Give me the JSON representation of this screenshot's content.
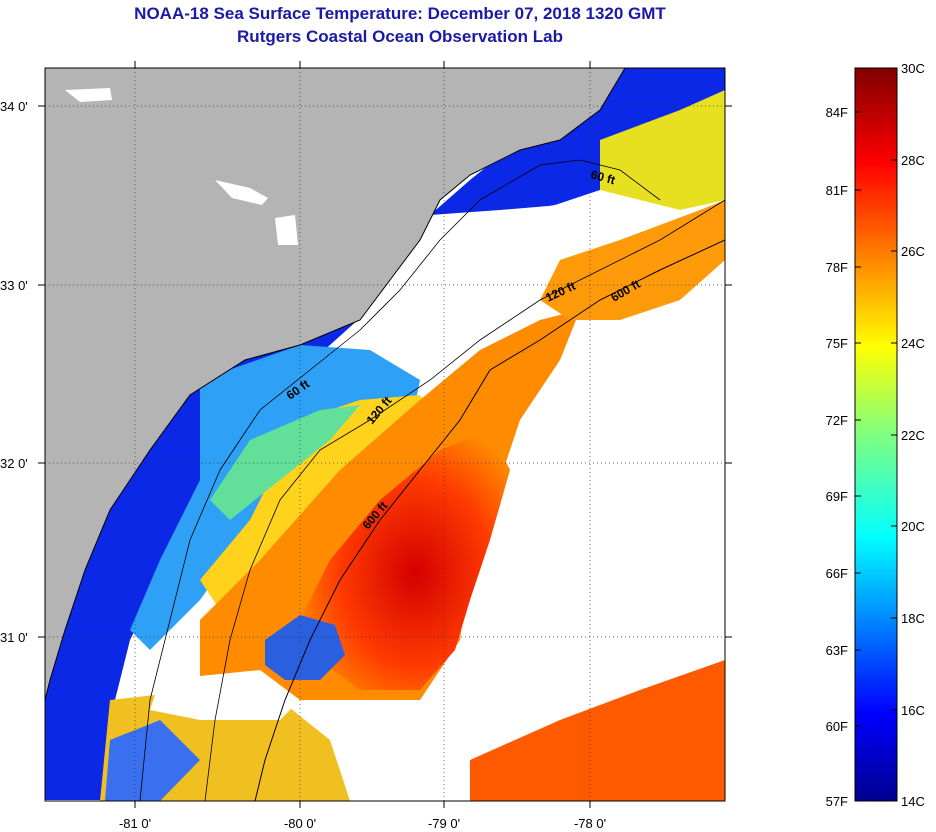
{
  "header": {
    "title": "NOAA-18 Sea Surface Temperature:  December 07, 2018 1320 GMT",
    "subtitle": "Rutgers Coastal Ocean Observation Lab"
  },
  "map": {
    "lat_ticks": [
      "34 0'",
      "33 0'",
      "32 0'",
      "31 0'"
    ],
    "lon_ticks": [
      "-81 0'",
      "-80 0'",
      "-79 0'",
      "-78 0'"
    ],
    "contour_labels": [
      "60 ft",
      "120 ft",
      "600 ft",
      "60 ft",
      "120 ft",
      "600 ft"
    ],
    "colors": {
      "land": "#b4b4b4",
      "cloud": "#ffffff"
    }
  },
  "colorbar": {
    "fahrenheit": [
      "84F",
      "81F",
      "78F",
      "75F",
      "72F",
      "69F",
      "66F",
      "63F",
      "60F",
      "57F"
    ],
    "celsius": [
      "30C",
      "28C",
      "26C",
      "24C",
      "22C",
      "20C",
      "18C",
      "16C",
      "14C"
    ],
    "range_c": [
      14,
      30
    ]
  }
}
